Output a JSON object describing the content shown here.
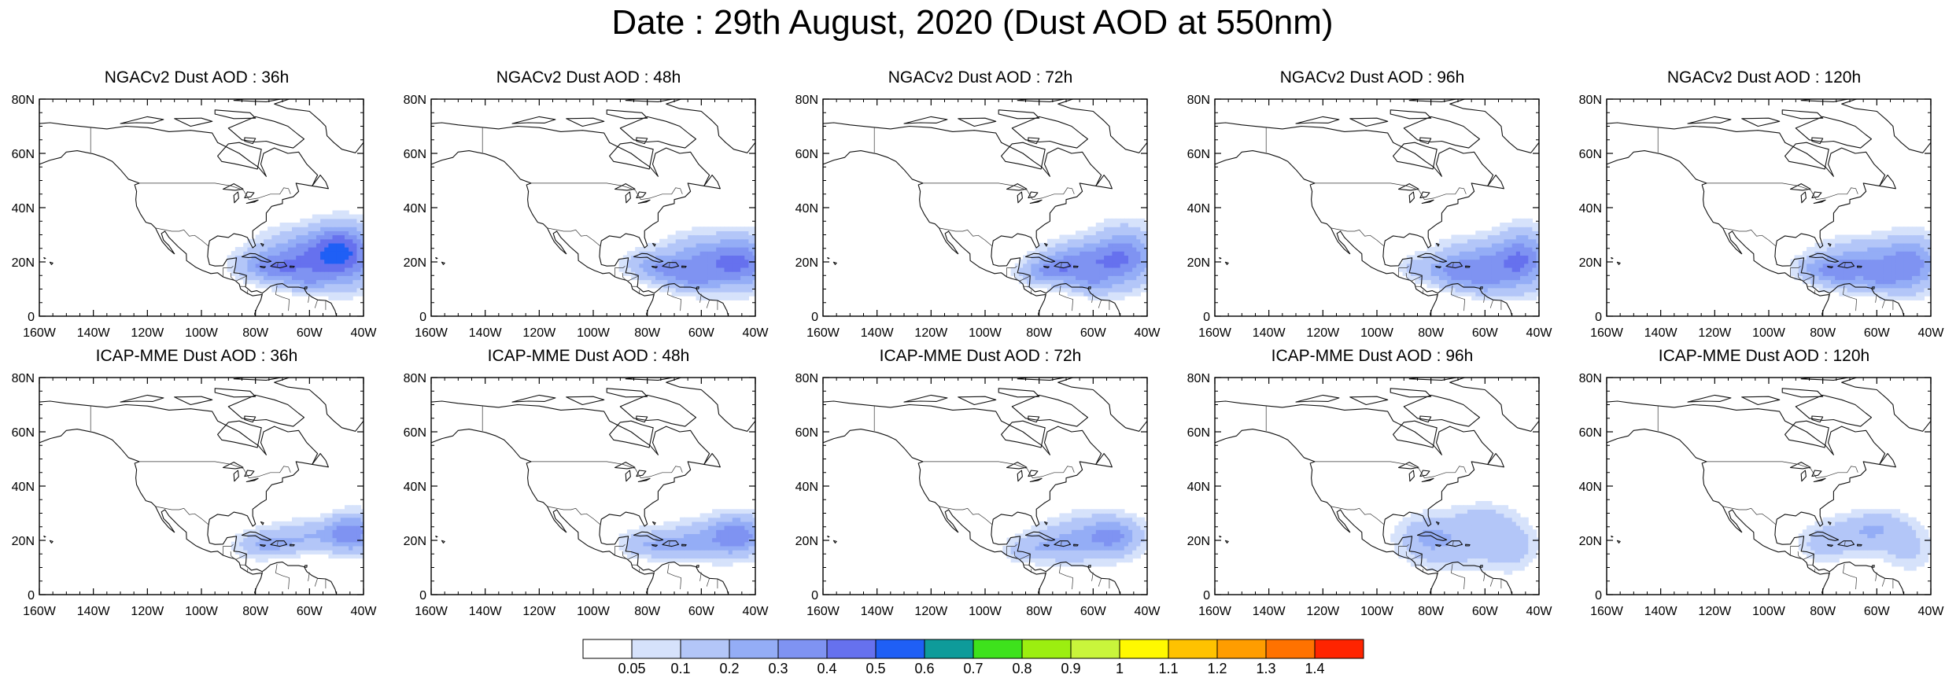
{
  "title": "Date : 29th August, 2020 (Dust AOD at 550nm)",
  "panels": [
    {
      "title": "NGACv2 Dust AOD : 36h",
      "lead": 36,
      "model": "ngac"
    },
    {
      "title": "NGACv2 Dust AOD : 48h",
      "lead": 48,
      "model": "ngac"
    },
    {
      "title": "NGACv2 Dust AOD : 72h",
      "lead": 72,
      "model": "ngac"
    },
    {
      "title": "NGACv2 Dust AOD : 96h",
      "lead": 96,
      "model": "ngac"
    },
    {
      "title": "NGACv2 Dust AOD : 120h",
      "lead": 120,
      "model": "ngac"
    },
    {
      "title": "ICAP-MME Dust AOD : 36h",
      "lead": 36,
      "model": "icap"
    },
    {
      "title": "ICAP-MME Dust AOD : 48h",
      "lead": 48,
      "model": "icap"
    },
    {
      "title": "ICAP-MME Dust AOD : 72h",
      "lead": 72,
      "model": "icap"
    },
    {
      "title": "ICAP-MME Dust AOD : 96h",
      "lead": 96,
      "model": "icap"
    },
    {
      "title": "ICAP-MME Dust AOD : 120h",
      "lead": 120,
      "model": "icap"
    }
  ],
  "axes": {
    "lon_range": [
      -160,
      -40
    ],
    "lat_range": [
      0,
      80
    ],
    "x_ticks": [
      "160W",
      "140W",
      "120W",
      "100W",
      "80W",
      "60W",
      "40W"
    ],
    "y_ticks": [
      "0",
      "20N",
      "40N",
      "60N",
      "80N"
    ]
  },
  "colorbar": {
    "labels": [
      "0.05",
      "0.1",
      "0.2",
      "0.3",
      "0.4",
      "0.5",
      "0.6",
      "0.7",
      "0.8",
      "0.9",
      "1",
      "1.1",
      "1.2",
      "1.3",
      "1.4"
    ],
    "colors": [
      "#ffffff",
      "#d6e2fb",
      "#b3c6f8",
      "#94adf6",
      "#7f93f2",
      "#6671ee",
      "#1f5ff5",
      "#0e9b9a",
      "#3ee21c",
      "#9cee10",
      "#c9f53b",
      "#fff900",
      "#ffc200",
      "#ff9d00",
      "#ff7200",
      "#ff2400"
    ]
  }
}
